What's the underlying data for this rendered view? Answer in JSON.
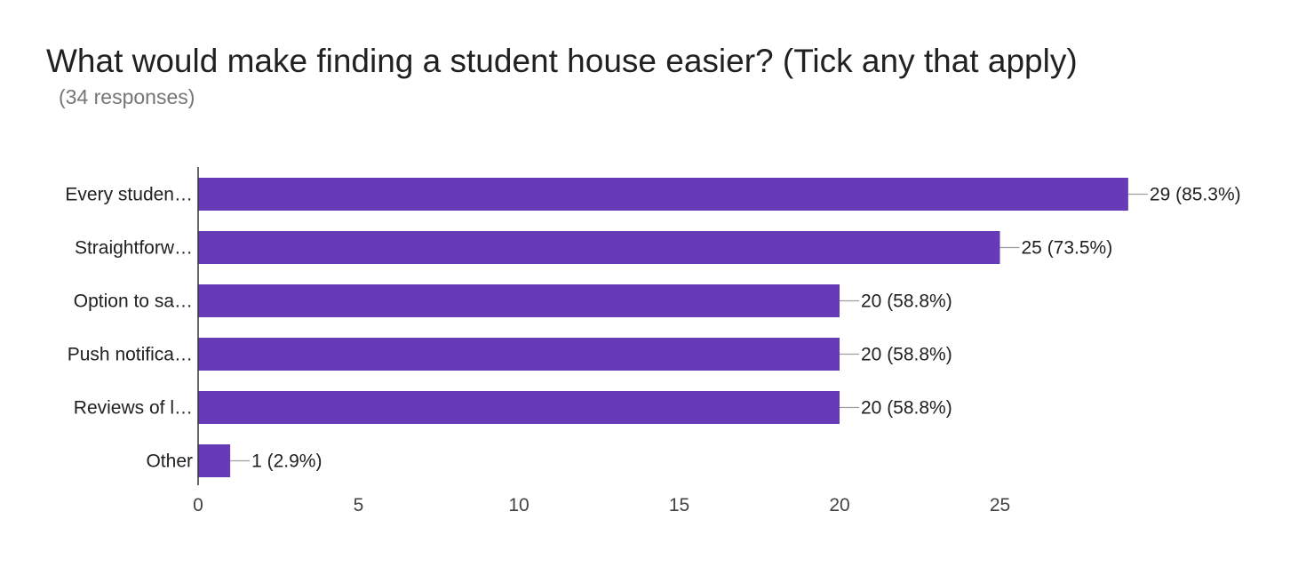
{
  "title": "What would make finding a student house easier? (Tick any that apply)",
  "subtitle": "(34 responses)",
  "colors": {
    "bar": "#673ab7",
    "axis": "#333333",
    "leader": "#9e9e9e"
  },
  "chart_data": {
    "type": "bar",
    "orientation": "horizontal",
    "categories": [
      "Every studen…",
      "Straightforw…",
      "Option to sa…",
      "Push notifica…",
      "Reviews of l…",
      "Other"
    ],
    "values": [
      29,
      25,
      20,
      20,
      20,
      1
    ],
    "value_labels": [
      "29 (85.3%)",
      "25 (73.5%)",
      "20 (58.8%)",
      "20 (58.8%)",
      "20 (58.8%)",
      "1 (2.9%)"
    ],
    "xlim": [
      0,
      35
    ],
    "xticks": [
      0,
      5,
      10,
      15,
      20,
      25
    ],
    "grid": false,
    "legend": "none"
  }
}
